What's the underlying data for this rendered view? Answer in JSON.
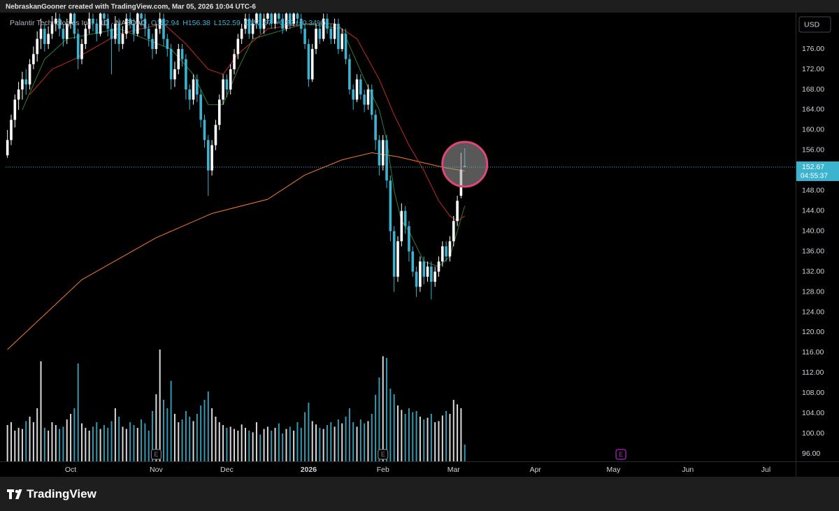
{
  "header": {
    "author_line": "NebraskanGooner created with TradingView.com, Mar 05, 2026 10:04 UTC-6"
  },
  "chart_data": {
    "type": "candlestick",
    "symbol": "Palantir Technologies Inc. · 1D · NASDAQ",
    "quote": [
      "O152.94",
      "H156.38",
      "L152.59",
      "C152.67",
      "+0.52 (+0.34%)"
    ],
    "currency": "USD",
    "last_price_label": "152.67",
    "countdown": "04:55:37",
    "up_color": "#ffffff",
    "down_color": "#3cb4d0",
    "candles": [
      [
        155,
        160,
        154.5,
        158
      ],
      [
        158,
        163,
        157,
        162
      ],
      [
        162,
        167,
        160.5,
        166
      ],
      [
        166,
        169.5,
        164,
        168
      ],
      [
        168,
        171.5,
        166,
        170
      ],
      [
        170,
        172,
        167,
        169
      ],
      [
        169,
        174,
        168,
        173
      ],
      [
        173,
        176.5,
        172,
        175
      ],
      [
        175,
        179.5,
        173.5,
        178
      ],
      [
        178,
        182,
        176,
        180
      ],
      [
        180,
        181,
        175.5,
        177
      ],
      [
        177,
        180.5,
        176,
        179
      ],
      [
        179,
        182.5,
        178,
        181
      ],
      [
        181,
        184,
        179.5,
        182
      ],
      [
        182,
        183,
        178.5,
        180
      ],
      [
        180,
        181,
        176.5,
        178
      ],
      [
        178,
        182,
        177,
        181
      ],
      [
        181,
        185,
        180,
        183
      ],
      [
        183,
        184,
        178,
        179
      ],
      [
        179,
        180,
        172,
        174
      ],
      [
        174,
        178,
        173,
        177
      ],
      [
        177,
        181,
        176,
        180
      ],
      [
        180,
        183.5,
        179,
        182
      ],
      [
        182,
        183,
        179.5,
        181
      ],
      [
        181,
        182,
        177.5,
        179
      ],
      [
        179,
        184.5,
        178.5,
        183
      ],
      [
        183,
        184,
        180.5,
        182
      ],
      [
        182,
        183,
        178.5,
        180
      ],
      [
        180,
        181,
        171,
        178
      ],
      [
        178,
        182.5,
        177,
        181
      ],
      [
        181,
        182,
        175.5,
        177
      ],
      [
        177,
        180.5,
        176,
        179
      ],
      [
        179,
        183,
        178,
        182
      ],
      [
        182,
        183.5,
        180,
        181
      ],
      [
        181,
        182,
        177.5,
        179
      ],
      [
        179,
        184.5,
        178.5,
        183
      ],
      [
        183,
        184,
        180.5,
        182
      ],
      [
        182,
        183,
        178.5,
        180
      ],
      [
        180,
        181,
        176.5,
        178
      ],
      [
        178,
        179,
        174,
        176
      ],
      [
        176,
        181,
        175,
        180
      ],
      [
        180,
        183.5,
        179,
        182
      ],
      [
        182,
        183,
        176.5,
        178
      ],
      [
        178,
        179,
        174.5,
        176
      ],
      [
        176,
        177,
        168,
        170
      ],
      [
        170,
        173.5,
        168.5,
        172
      ],
      [
        172,
        177,
        171,
        176
      ],
      [
        176,
        177,
        172.5,
        174
      ],
      [
        174,
        175,
        166,
        168
      ],
      [
        168,
        169,
        164,
        166
      ],
      [
        166,
        171,
        165,
        170
      ],
      [
        170,
        171,
        165.5,
        167
      ],
      [
        167,
        168,
        160.5,
        162
      ],
      [
        162,
        163,
        156.5,
        158
      ],
      [
        158,
        159,
        147,
        152
      ],
      [
        152,
        158,
        151,
        157
      ],
      [
        157,
        162,
        156,
        161
      ],
      [
        161,
        167,
        160,
        166
      ],
      [
        166,
        171,
        165,
        170
      ],
      [
        170,
        171,
        166.5,
        168
      ],
      [
        168,
        173,
        167,
        172
      ],
      [
        172,
        176,
        171,
        175
      ],
      [
        175,
        179,
        174,
        178
      ],
      [
        178,
        181,
        177,
        180
      ],
      [
        180,
        183,
        179,
        182
      ],
      [
        182,
        183,
        178,
        179
      ],
      [
        179,
        182,
        178,
        181
      ],
      [
        181,
        184.5,
        180,
        183
      ],
      [
        183,
        184,
        179,
        180
      ],
      [
        180,
        183,
        179,
        182
      ],
      [
        182,
        184.5,
        181,
        183
      ],
      [
        183,
        184,
        180,
        181
      ],
      [
        181,
        184.5,
        180,
        183
      ],
      [
        183,
        184,
        181,
        182
      ],
      [
        182,
        183,
        179,
        180
      ],
      [
        180,
        184.5,
        179.5,
        183
      ],
      [
        183,
        184,
        180,
        181
      ],
      [
        181,
        184.5,
        180.5,
        183
      ],
      [
        183,
        184,
        181,
        182
      ],
      [
        182,
        183,
        179,
        180
      ],
      [
        180,
        181,
        176,
        177
      ],
      [
        177,
        178,
        168.5,
        170
      ],
      [
        170,
        177,
        169.5,
        176
      ],
      [
        176,
        181,
        175,
        180
      ],
      [
        180,
        181,
        177,
        178
      ],
      [
        178,
        183,
        177.5,
        182
      ],
      [
        182,
        183,
        179,
        180
      ],
      [
        180,
        181,
        177,
        178
      ],
      [
        178,
        182,
        177,
        181
      ],
      [
        181,
        182,
        175,
        176
      ],
      [
        176,
        180,
        175.5,
        179
      ],
      [
        179,
        180,
        173,
        174
      ],
      [
        174,
        175,
        167,
        168
      ],
      [
        168,
        169,
        164,
        166
      ],
      [
        166,
        171,
        165.5,
        170
      ],
      [
        170,
        171,
        166,
        167
      ],
      [
        167,
        168,
        163.5,
        165
      ],
      [
        165,
        169,
        164,
        168
      ],
      [
        168,
        169,
        162,
        163
      ],
      [
        163,
        164,
        156,
        158
      ],
      [
        158,
        159,
        151,
        153
      ],
      [
        153,
        159,
        152,
        158
      ],
      [
        158,
        159,
        148.5,
        150
      ],
      [
        150,
        151,
        138,
        140
      ],
      [
        140,
        141,
        128,
        131
      ],
      [
        131,
        139,
        130,
        138
      ],
      [
        138,
        145.5,
        137,
        144
      ],
      [
        144,
        145,
        139.5,
        141
      ],
      [
        141,
        142,
        134,
        136
      ],
      [
        136,
        137,
        131,
        132
      ],
      [
        132,
        133,
        127,
        129
      ],
      [
        129,
        135,
        128,
        134
      ],
      [
        134,
        135,
        129.5,
        131
      ],
      [
        131,
        134,
        130,
        133
      ],
      [
        133,
        134,
        126.5,
        130
      ],
      [
        130,
        133,
        129,
        132
      ],
      [
        132,
        135,
        131,
        134
      ],
      [
        134,
        138,
        133,
        137
      ],
      [
        137,
        138,
        134,
        135
      ],
      [
        135,
        139,
        134,
        138
      ],
      [
        138,
        143,
        137,
        142
      ],
      [
        142,
        147,
        141,
        146
      ],
      [
        147,
        155.5,
        146.5,
        152.15
      ],
      [
        152.94,
        156.38,
        152.59,
        152.67
      ]
    ],
    "volume": [
      65,
      70,
      55,
      60,
      58,
      72,
      80,
      70,
      95,
      179,
      60,
      55,
      70,
      65,
      58,
      62,
      75,
      85,
      95,
      175,
      68,
      60,
      55,
      62,
      70,
      58,
      65,
      60,
      72,
      95,
      80,
      62,
      58,
      70,
      65,
      60,
      75,
      68,
      55,
      90,
      120,
      200,
      110,
      95,
      144,
      85,
      70,
      75,
      90,
      80,
      72,
      85,
      100,
      110,
      125,
      95,
      80,
      70,
      65,
      60,
      62,
      58,
      55,
      66,
      60,
      55,
      52,
      70,
      48,
      58,
      62,
      55,
      60,
      68,
      50,
      58,
      62,
      55,
      70,
      60,
      88,
      105,
      72,
      66,
      60,
      58,
      65,
      70,
      62,
      75,
      68,
      80,
      95,
      70,
      62,
      75,
      68,
      72,
      85,
      119,
      150,
      188,
      185,
      130,
      120,
      100,
      92,
      85,
      95,
      88,
      90,
      80,
      75,
      78,
      85,
      70,
      72,
      82,
      90,
      85,
      110,
      102,
      95,
      30
    ],
    "volume_lim": [
      0,
      250
    ],
    "moving_averages": [
      {
        "color": "#f57c2e",
        "x": [
          0,
          20,
          40,
          55,
          70,
          80,
          90,
          98,
          105,
          112,
          118,
          123
        ],
        "values": [
          116.6,
          130.4,
          138.7,
          143.5,
          146.3,
          151.1,
          154.1,
          155.5,
          154.7,
          153.5,
          152.5,
          151.9
        ]
      },
      {
        "color": "#c62828",
        "x": [
          6,
          12,
          18,
          30,
          42,
          48,
          54,
          58,
          62,
          70,
          80,
          88,
          94,
          100,
          104,
          108,
          112,
          116,
          119,
          121,
          123
        ],
        "values": [
          167,
          172,
          174,
          179,
          181,
          177,
          172,
          171,
          175,
          180,
          181,
          181,
          178,
          170,
          163,
          157,
          152,
          146,
          143,
          142,
          143
        ]
      },
      {
        "color": "#2e7d32",
        "x": [
          4,
          10,
          16,
          30,
          44,
          50,
          54,
          58,
          62,
          66,
          80,
          90,
          96,
          100,
          102,
          104,
          106,
          108,
          112,
          116,
          119,
          121,
          123
        ],
        "values": [
          164,
          174,
          178,
          180,
          176,
          171,
          165,
          165,
          172,
          178,
          181,
          180,
          170,
          164,
          158,
          148,
          142,
          140,
          134,
          133,
          135,
          140,
          145
        ]
      }
    ],
    "events": [
      {
        "label": "E",
        "x": 40,
        "color": "#787b86"
      },
      {
        "label": "E",
        "x": 101,
        "color": "#787b86"
      },
      {
        "label": "E",
        "x": 165,
        "color": "#b026c6"
      }
    ],
    "xlim": [
      -0.5,
      212
    ],
    "xticks": [
      {
        "value": 17,
        "label": "Oct"
      },
      {
        "value": 40,
        "label": "Nov"
      },
      {
        "value": 59,
        "label": "Dec"
      },
      {
        "value": 81,
        "label": "2026"
      },
      {
        "value": 101,
        "label": "Feb"
      },
      {
        "value": 120,
        "label": "Mar"
      },
      {
        "value": 142,
        "label": "Apr"
      },
      {
        "value": 163,
        "label": "May"
      },
      {
        "value": 183,
        "label": "Jun"
      },
      {
        "value": 204,
        "label": "Jul"
      }
    ],
    "ylim": [
      94.5,
      183.2
    ],
    "yticks": [
      {
        "value": 96,
        "label": "96.00"
      },
      {
        "value": 100,
        "label": "100.00"
      },
      {
        "value": 104,
        "label": "104.00"
      },
      {
        "value": 108,
        "label": "108.00"
      },
      {
        "value": 112,
        "label": "112.00"
      },
      {
        "value": 116,
        "label": "116.00"
      },
      {
        "value": 120,
        "label": "120.00"
      },
      {
        "value": 124,
        "label": "124.00"
      },
      {
        "value": 128,
        "label": "128.00"
      },
      {
        "value": 132,
        "label": "132.00"
      },
      {
        "value": 136,
        "label": "136.00"
      },
      {
        "value": 140,
        "label": "140.00"
      },
      {
        "value": 144,
        "label": "144.00"
      },
      {
        "value": 148,
        "label": "148.00"
      },
      {
        "value": 152,
        "label": "152.00"
      },
      {
        "value": 156,
        "label": "156.00"
      },
      {
        "value": 160,
        "label": "160.00"
      },
      {
        "value": 164,
        "label": "164.00"
      },
      {
        "value": 168,
        "label": "168.00"
      },
      {
        "value": 172,
        "label": "172.00"
      },
      {
        "value": 176,
        "label": "176.00"
      }
    ]
  },
  "footer": {
    "brand": "TradingView"
  }
}
